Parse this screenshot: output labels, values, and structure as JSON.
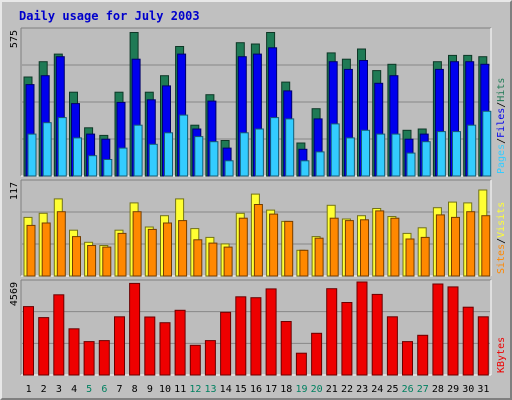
{
  "chart_data": {
    "type": "bar",
    "title": "Daily usage for July 2003",
    "categories": [
      "1",
      "2",
      "3",
      "4",
      "5",
      "6",
      "7",
      "8",
      "9",
      "10",
      "11",
      "12",
      "13",
      "14",
      "15",
      "16",
      "17",
      "18",
      "19",
      "20",
      "21",
      "22",
      "23",
      "24",
      "25",
      "26",
      "27",
      "28",
      "29",
      "30",
      "31"
    ],
    "weekend_days": [
      "5",
      "6",
      "12",
      "13",
      "19",
      "20",
      "26",
      "27"
    ],
    "colors": {
      "title": "#0000cc",
      "hits": "#1f7a55",
      "files": "#0000ee",
      "pages": "#33ccff",
      "visits": "#ffff33",
      "sites": "#ff8800",
      "kbytes": "#ee0000",
      "weekday_label": "#000000",
      "weekend_label": "#008060"
    },
    "panels": [
      {
        "id": "top",
        "ymax_label": "575",
        "ymax": 575,
        "legend": [
          "Pages",
          "/",
          "Files",
          "/",
          "Hits"
        ],
        "series": [
          {
            "name": "Hits",
            "values": [
              390,
              450,
              480,
              330,
              190,
              160,
              330,
              565,
              330,
              395,
              510,
              200,
              320,
              140,
              525,
              520,
              565,
              370,
              130,
              265,
              485,
              460,
              500,
              415,
              440,
              180,
              185,
              450,
              475,
              475,
              470
            ]
          },
          {
            "name": "Files",
            "values": [
              360,
              395,
              470,
              285,
              165,
              145,
              290,
              460,
              300,
              355,
              480,
              185,
              295,
              110,
              470,
              480,
              505,
              335,
              105,
              225,
              450,
              420,
              455,
              365,
              395,
              145,
              165,
              420,
              450,
              450,
              440
            ]
          },
          {
            "name": "Pages",
            "values": [
              165,
              210,
              230,
              150,
              80,
              65,
              110,
              200,
              125,
              170,
              240,
              155,
              135,
              60,
              170,
              185,
              230,
              225,
              60,
              95,
              205,
              150,
              180,
              165,
              165,
              90,
              135,
              175,
              175,
              200,
              255
            ]
          }
        ]
      },
      {
        "id": "middle",
        "ymax_label": "117",
        "ymax": 117,
        "legend": [
          "Sites",
          "/",
          "Visits"
        ],
        "series": [
          {
            "name": "Visits",
            "values": [
              73,
              78,
              96,
              57,
              42,
              38,
              57,
              91,
              61,
              75,
              96,
              59,
              48,
              40,
              78,
              102,
              82,
              68,
              32,
              49,
              88,
              71,
              75,
              84,
              74,
              53,
              60,
              85,
              92,
              91,
              107
            ]
          },
          {
            "name": "Sites",
            "values": [
              63,
              66,
              80,
              49,
              38,
              36,
              53,
              80,
              58,
              66,
              69,
              45,
              41,
              36,
              72,
              89,
              77,
              68,
              32,
              47,
              72,
              69,
              70,
              81,
              72,
              46,
              48,
              76,
              73,
              80,
              75
            ]
          }
        ]
      },
      {
        "id": "bottom",
        "ymax_label": "4569",
        "ymax": 4569,
        "legend": [
          "KBytes"
        ],
        "series": [
          {
            "name": "KBytes",
            "values": [
              3360,
              2820,
              3940,
              2270,
              1640,
              1690,
              2860,
              4500,
              2850,
              2570,
              3180,
              1460,
              1690,
              3080,
              3840,
              3800,
              4230,
              2630,
              1070,
              2050,
              4240,
              3560,
              4569,
              3960,
              2860,
              1640,
              1950,
              4470,
              4330,
              3330,
              2860
            ]
          }
        ]
      }
    ]
  }
}
